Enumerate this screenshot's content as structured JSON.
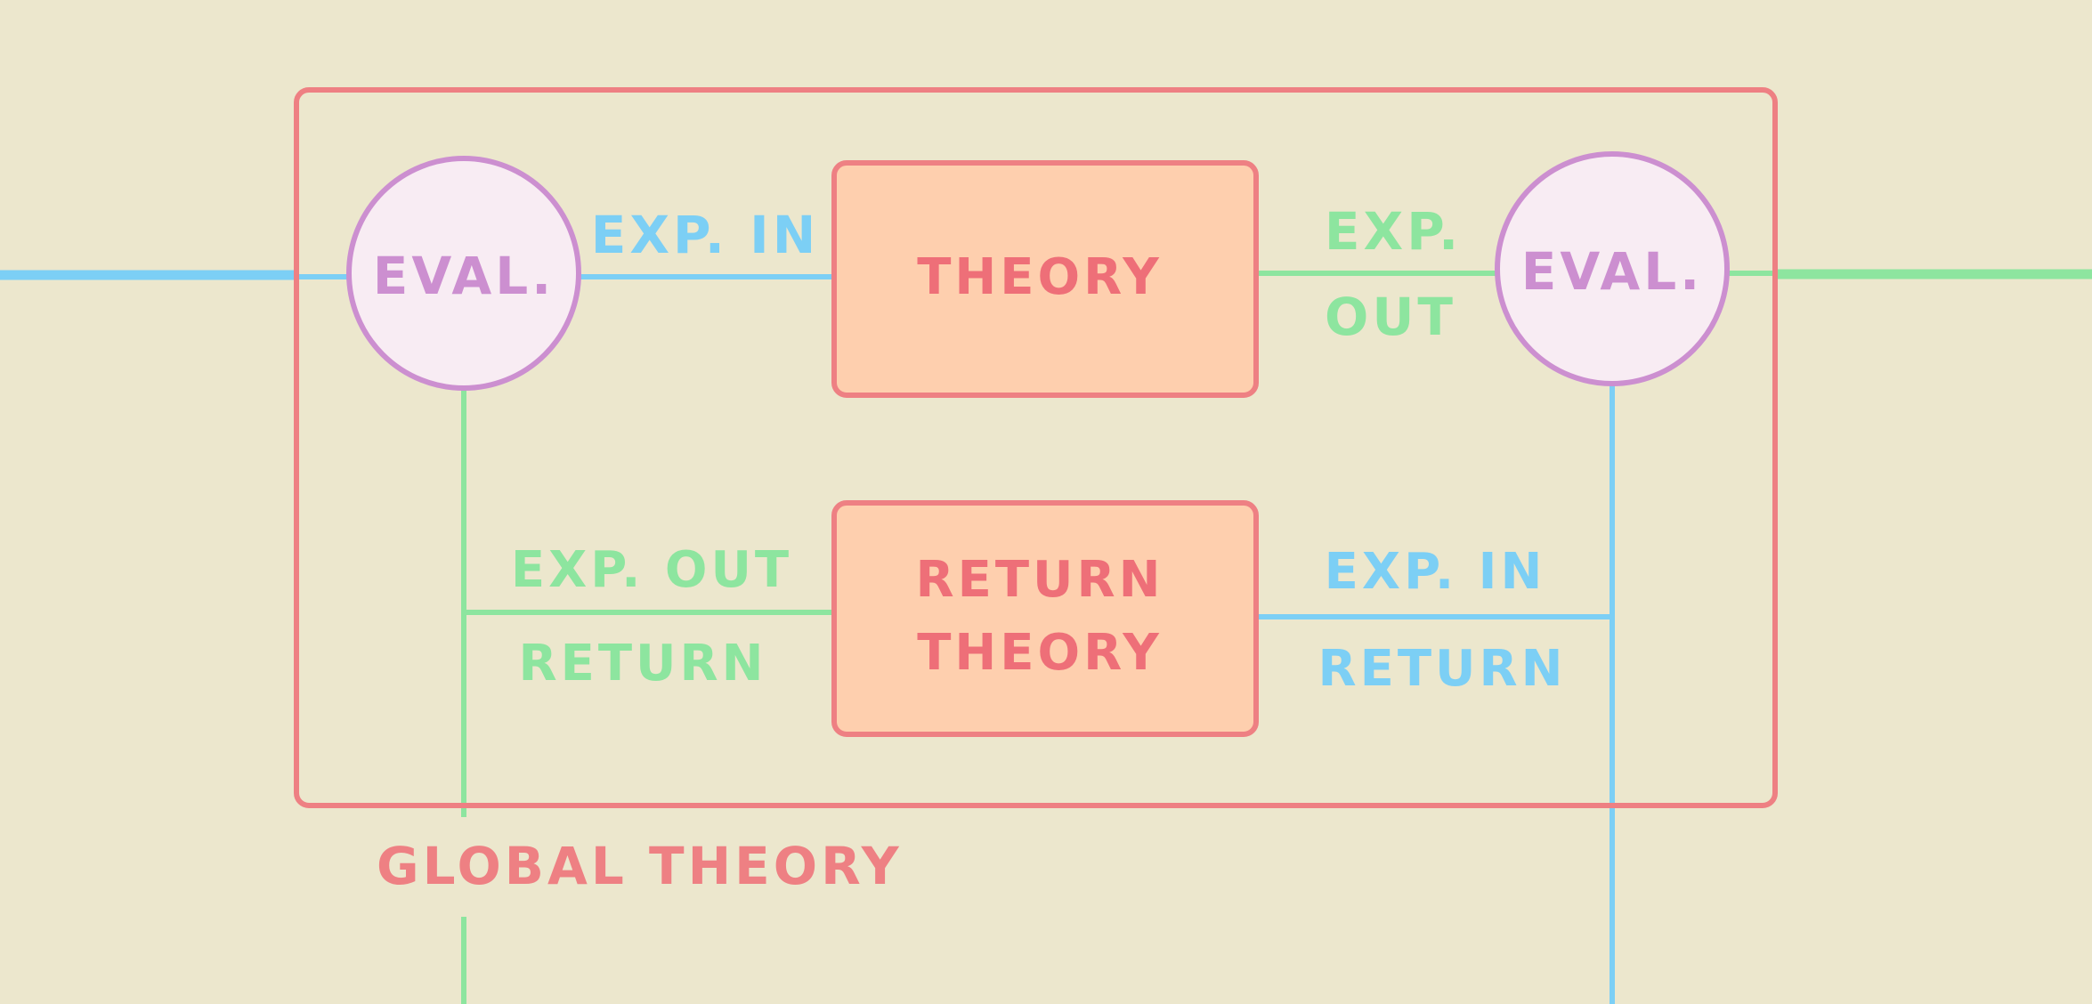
{
  "colors": {
    "background": "#ece7cd",
    "frame": "#ee8083",
    "box_fill": "#fecfae",
    "eval_stroke": "#cc8fd0",
    "eval_fill": "#f8ecf3",
    "blue": "#7ccff5",
    "green": "#8de59f",
    "theory_text": "#ee6f78"
  },
  "global_theory": {
    "label": "GLOBAL THEORY"
  },
  "nodes": {
    "eval_left": {
      "label": "EVAL."
    },
    "eval_right": {
      "label": "EVAL."
    },
    "theory": {
      "label": "THEORY"
    },
    "return_theory": {
      "line1": "RETURN",
      "line2": "THEORY"
    }
  },
  "edges": {
    "top_left": {
      "label": "EXP. IN"
    },
    "top_right": {
      "line1": "EXP.",
      "line2": "OUT"
    },
    "bottom_left": {
      "line1": "EXP. OUT",
      "line2": "RETURN"
    },
    "bottom_right": {
      "line1": "EXP. IN",
      "line2": "RETURN"
    }
  }
}
